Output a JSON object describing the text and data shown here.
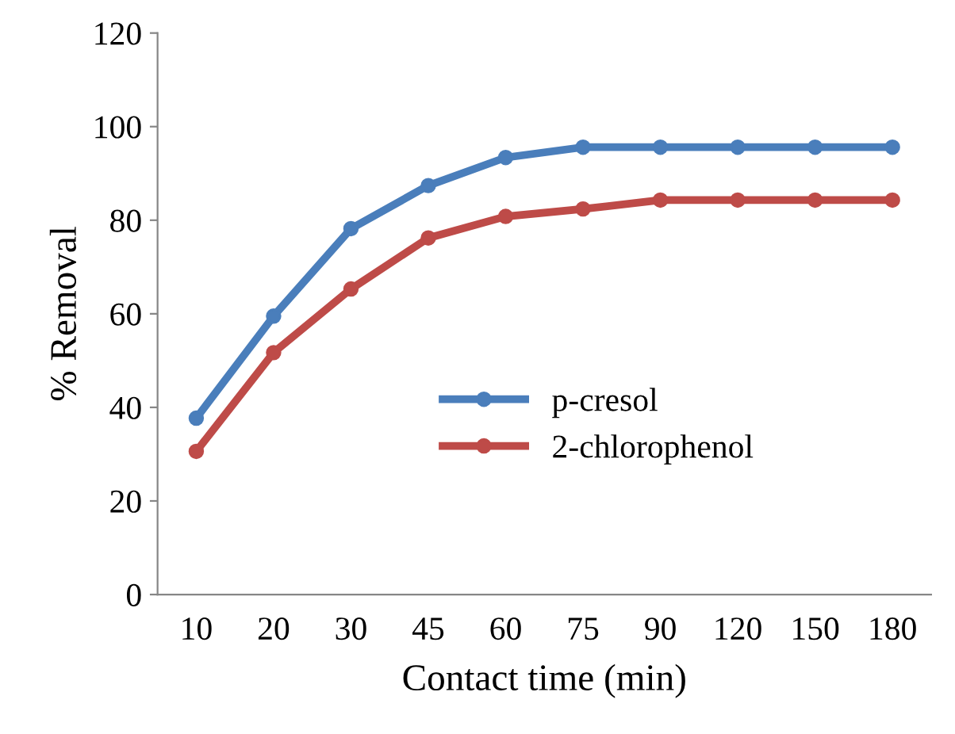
{
  "chart_data": {
    "type": "line",
    "xlabel": "Contact time (min)",
    "ylabel": "% Removal",
    "categories": [
      "10",
      "20",
      "30",
      "45",
      "60",
      "75",
      "90",
      "120",
      "150",
      "180"
    ],
    "series": [
      {
        "name": "p-cresol",
        "color": "#4a7ebb",
        "values": [
          37.7,
          59.5,
          78.2,
          87.4,
          93.4,
          95.6,
          95.6,
          95.6,
          95.6,
          95.6
        ]
      },
      {
        "name": "2-chlorophenol",
        "color": "#be4b48",
        "values": [
          30.6,
          51.7,
          65.3,
          76.2,
          80.8,
          82.4,
          84.3,
          84.3,
          84.3,
          84.3
        ]
      }
    ],
    "ylim": [
      0,
      120
    ],
    "yticks": [
      0,
      20,
      40,
      60,
      80,
      100,
      120
    ],
    "grid": false,
    "legend": "center",
    "marker": "circle",
    "line_style": "solid"
  }
}
